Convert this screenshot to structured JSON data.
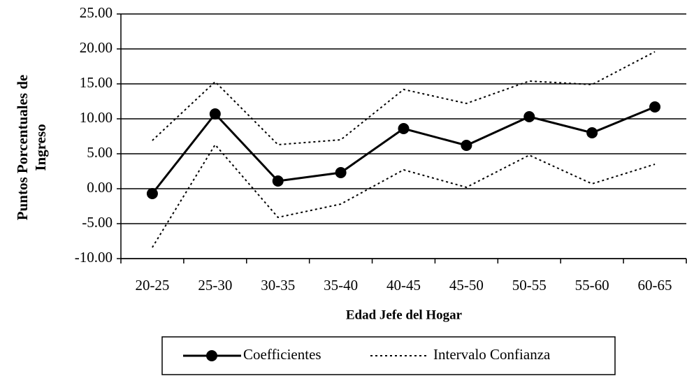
{
  "chart_data": {
    "type": "line",
    "x_label": "Edad Jefe del Hogar",
    "y_label": "Puntos Porcentuales de Ingreso",
    "categories": [
      "20-25",
      "25-30",
      "30-35",
      "35-40",
      "40-45",
      "45-50",
      "50-55",
      "55-60",
      "60-65"
    ],
    "series": [
      {
        "name": "Coefficientes",
        "color": "#000000",
        "values": [
          -0.7,
          10.7,
          1.1,
          2.3,
          8.6,
          6.2,
          10.3,
          8.0,
          11.7
        ]
      },
      {
        "name": "Intervalo Confianza",
        "color": "#000000",
        "upper": [
          6.9,
          15.3,
          6.3,
          7.0,
          14.2,
          12.2,
          15.4,
          14.9,
          19.6
        ],
        "lower": [
          -8.4,
          6.3,
          -4.1,
          -2.2,
          2.7,
          0.2,
          4.8,
          0.7,
          3.5
        ]
      }
    ],
    "ylim": [
      -10,
      25
    ],
    "yticks": [
      {
        "value": -10,
        "label": "-10.00"
      },
      {
        "value": -5,
        "label": "-5.00"
      },
      {
        "value": 0,
        "label": "0.00"
      },
      {
        "value": 5,
        "label": "5.00"
      },
      {
        "value": 10,
        "label": "10.00"
      },
      {
        "value": 15,
        "label": "15.00"
      },
      {
        "value": 20,
        "label": "20.00"
      },
      {
        "value": 25,
        "label": "25.00"
      }
    ],
    "grid": true,
    "legend": "bottom"
  }
}
